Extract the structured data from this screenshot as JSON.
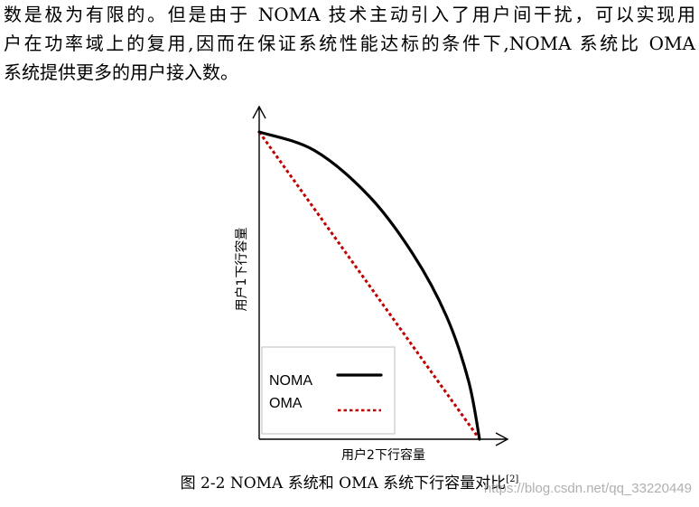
{
  "paragraph": {
    "lines": [
      "数是极为有限的。但是由于 NOMA 技术主动引入了用户间干扰，可以实现用",
      "户在功率域上的复用,因而在保证系统性能达标的条件下,NOMA 系统比 OMA",
      "系统提供更多的用户接入数。"
    ]
  },
  "figure": {
    "caption_text": "图 2-2 NOMA 系统和 OMA 系统下行容量对比",
    "caption_ref": "[2]",
    "watermark": "https://blog.csdn.net/qq_33220449"
  },
  "chart_data": {
    "type": "line",
    "title": "",
    "xlabel": "用户2下行容量",
    "ylabel": "用户1下行容量",
    "legend_position": "bottom-left",
    "grid": false,
    "series": [
      {
        "name": "NOMA",
        "style": "solid",
        "color": "#000000",
        "x": [
          0,
          0.25,
          0.5,
          0.7,
          0.85,
          0.95,
          1
        ],
        "y": [
          1,
          0.94,
          0.79,
          0.6,
          0.4,
          0.19,
          0
        ]
      },
      {
        "name": "OMA",
        "style": "dotted",
        "color": "#c00000",
        "x": [
          0,
          1
        ],
        "y": [
          1,
          0
        ]
      }
    ]
  }
}
